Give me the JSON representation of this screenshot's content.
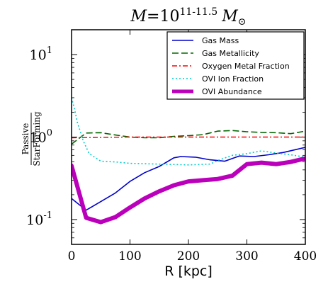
{
  "chart_data": {
    "type": "line",
    "title": "M=10^{11-11.5} M_⊙",
    "title_parts": {
      "lhs": "M",
      "eq": "=",
      "base": "10",
      "exp": "11-11.5",
      "unit": "M",
      "sun": "⊙"
    },
    "xlabel": "R [kpc]",
    "ylabel_num": "Passive",
    "ylabel_den": "StarForming",
    "xlim": [
      0,
      400
    ],
    "ylim": [
      0.05,
      20
    ],
    "yscale": "log",
    "xticks": [
      0,
      100,
      200,
      300,
      400
    ],
    "yticks": [
      {
        "value": 0.1,
        "base": "10",
        "exp": "-1"
      },
      {
        "value": 1,
        "base": "10",
        "exp": "0"
      },
      {
        "value": 10,
        "base": "10",
        "exp": "1"
      }
    ],
    "legend_position": "top-right",
    "series": [
      {
        "name": "Gas Mass",
        "color": "#0000cc",
        "style": "solid",
        "width": 1.6,
        "x": [
          0,
          25,
          50,
          75,
          100,
          125,
          150,
          175,
          187,
          212,
          237,
          262,
          287,
          312,
          337,
          362,
          400
        ],
        "y": [
          0.18,
          0.13,
          0.165,
          0.21,
          0.29,
          0.37,
          0.44,
          0.56,
          0.58,
          0.57,
          0.53,
          0.51,
          0.59,
          0.58,
          0.61,
          0.65,
          0.75
        ]
      },
      {
        "name": "Gas Metallicity",
        "color": "#006600",
        "style": "dashed",
        "width": 1.6,
        "x": [
          0,
          25,
          50,
          75,
          100,
          125,
          150,
          175,
          200,
          225,
          250,
          275,
          300,
          325,
          350,
          375,
          400
        ],
        "y": [
          0.82,
          1.12,
          1.13,
          1.06,
          1.0,
          0.98,
          0.98,
          1.02,
          1.04,
          1.07,
          1.18,
          1.2,
          1.16,
          1.14,
          1.13,
          1.1,
          1.18
        ]
      },
      {
        "name": "Oxygen Metal Fraction",
        "color": "#ff0000",
        "style": "dashdot",
        "width": 1.4,
        "x": [
          0,
          50,
          100,
          150,
          200,
          250,
          300,
          350,
          400
        ],
        "y": [
          0.98,
          0.99,
          1.0,
          1.0,
          1.0,
          1.0,
          1.0,
          1.0,
          1.0
        ]
      },
      {
        "name": "OVI Ion Fraction",
        "color": "#00cccc",
        "style": "dotted",
        "width": 1.6,
        "x": [
          0,
          5,
          10,
          20,
          30,
          50,
          75,
          100,
          150,
          200,
          237,
          250,
          275,
          300,
          325,
          350,
          375,
          400
        ],
        "y": [
          3.0,
          2.2,
          1.5,
          0.9,
          0.63,
          0.51,
          0.5,
          0.48,
          0.47,
          0.46,
          0.47,
          0.52,
          0.6,
          0.63,
          0.68,
          0.64,
          0.61,
          0.57
        ]
      },
      {
        "name": "OVI Abundance",
        "color": "#bb00bb",
        "style": "solid",
        "width": 6,
        "x": [
          0,
          25,
          50,
          75,
          100,
          125,
          150,
          175,
          200,
          225,
          250,
          275,
          300,
          325,
          350,
          375,
          400
        ],
        "y": [
          0.45,
          0.105,
          0.093,
          0.107,
          0.14,
          0.18,
          0.22,
          0.26,
          0.29,
          0.3,
          0.31,
          0.34,
          0.47,
          0.49,
          0.47,
          0.5,
          0.55
        ]
      }
    ]
  }
}
